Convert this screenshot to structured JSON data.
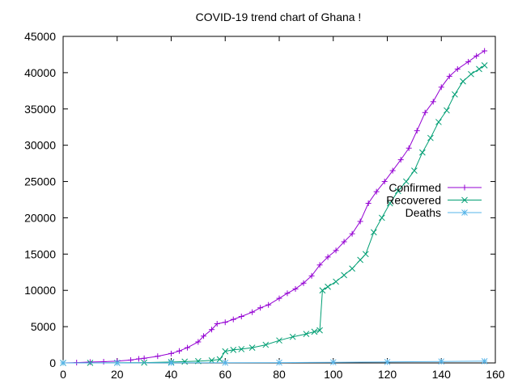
{
  "chart_data": {
    "type": "line",
    "title": "COVID-19 trend chart of Ghana !",
    "xlabel": "",
    "ylabel": "",
    "xlim": [
      0,
      160
    ],
    "ylim": [
      0,
      45000
    ],
    "xticks": [
      0,
      20,
      40,
      60,
      80,
      100,
      120,
      140,
      160
    ],
    "yticks": [
      0,
      5000,
      10000,
      15000,
      20000,
      25000,
      30000,
      35000,
      40000,
      45000
    ],
    "grid": false,
    "legend_position": "right",
    "series": [
      {
        "name": "Confirmed",
        "color": "#9400d3",
        "marker": "plus",
        "points": [
          [
            0,
            0
          ],
          [
            5,
            50
          ],
          [
            10,
            120
          ],
          [
            15,
            170
          ],
          [
            20,
            250
          ],
          [
            25,
            400
          ],
          [
            28,
            560
          ],
          [
            30,
            640
          ],
          [
            35,
            930
          ],
          [
            40,
            1300
          ],
          [
            43,
            1650
          ],
          [
            46,
            2100
          ],
          [
            50,
            2900
          ],
          [
            52,
            3700
          ],
          [
            55,
            4600
          ],
          [
            57,
            5400
          ],
          [
            60,
            5600
          ],
          [
            63,
            6000
          ],
          [
            66,
            6400
          ],
          [
            70,
            7000
          ],
          [
            73,
            7600
          ],
          [
            76,
            8000
          ],
          [
            80,
            8900
          ],
          [
            83,
            9600
          ],
          [
            86,
            10200
          ],
          [
            89,
            11000
          ],
          [
            92,
            12000
          ],
          [
            95,
            13500
          ],
          [
            98,
            14600
          ],
          [
            101,
            15500
          ],
          [
            104,
            16700
          ],
          [
            107,
            17800
          ],
          [
            110,
            19500
          ],
          [
            113,
            22000
          ],
          [
            116,
            23600
          ],
          [
            119,
            25000
          ],
          [
            122,
            26500
          ],
          [
            125,
            28000
          ],
          [
            128,
            29600
          ],
          [
            131,
            32000
          ],
          [
            134,
            34500
          ],
          [
            137,
            36000
          ],
          [
            140,
            38000
          ],
          [
            143,
            39500
          ],
          [
            146,
            40500
          ],
          [
            150,
            41500
          ],
          [
            153,
            42300
          ],
          [
            156,
            43000
          ]
        ]
      },
      {
        "name": "Recovered",
        "color": "#009e73",
        "marker": "cross",
        "points": [
          [
            0,
            0
          ],
          [
            10,
            10
          ],
          [
            20,
            20
          ],
          [
            30,
            40
          ],
          [
            40,
            120
          ],
          [
            45,
            180
          ],
          [
            50,
            250
          ],
          [
            55,
            350
          ],
          [
            58,
            500
          ],
          [
            60,
            1600
          ],
          [
            63,
            1800
          ],
          [
            66,
            1900
          ],
          [
            70,
            2100
          ],
          [
            75,
            2500
          ],
          [
            80,
            3100
          ],
          [
            85,
            3600
          ],
          [
            90,
            4000
          ],
          [
            93,
            4300
          ],
          [
            95,
            4500
          ],
          [
            96,
            10000
          ],
          [
            98,
            10500
          ],
          [
            101,
            11200
          ],
          [
            104,
            12100
          ],
          [
            107,
            13000
          ],
          [
            110,
            14200
          ],
          [
            112,
            15000
          ],
          [
            115,
            18000
          ],
          [
            118,
            20000
          ],
          [
            121,
            22000
          ],
          [
            124,
            23700
          ],
          [
            127,
            25000
          ],
          [
            130,
            26500
          ],
          [
            133,
            29000
          ],
          [
            136,
            31000
          ],
          [
            139,
            33200
          ],
          [
            142,
            34800
          ],
          [
            145,
            37000
          ],
          [
            148,
            38800
          ],
          [
            151,
            39800
          ],
          [
            154,
            40500
          ],
          [
            156,
            41000
          ]
        ]
      },
      {
        "name": "Deaths",
        "color": "#56b4e9",
        "marker": "star",
        "points": [
          [
            0,
            0
          ],
          [
            20,
            5
          ],
          [
            40,
            10
          ],
          [
            60,
            30
          ],
          [
            80,
            50
          ],
          [
            100,
            90
          ],
          [
            120,
            130
          ],
          [
            140,
            200
          ],
          [
            156,
            240
          ]
        ]
      }
    ]
  }
}
